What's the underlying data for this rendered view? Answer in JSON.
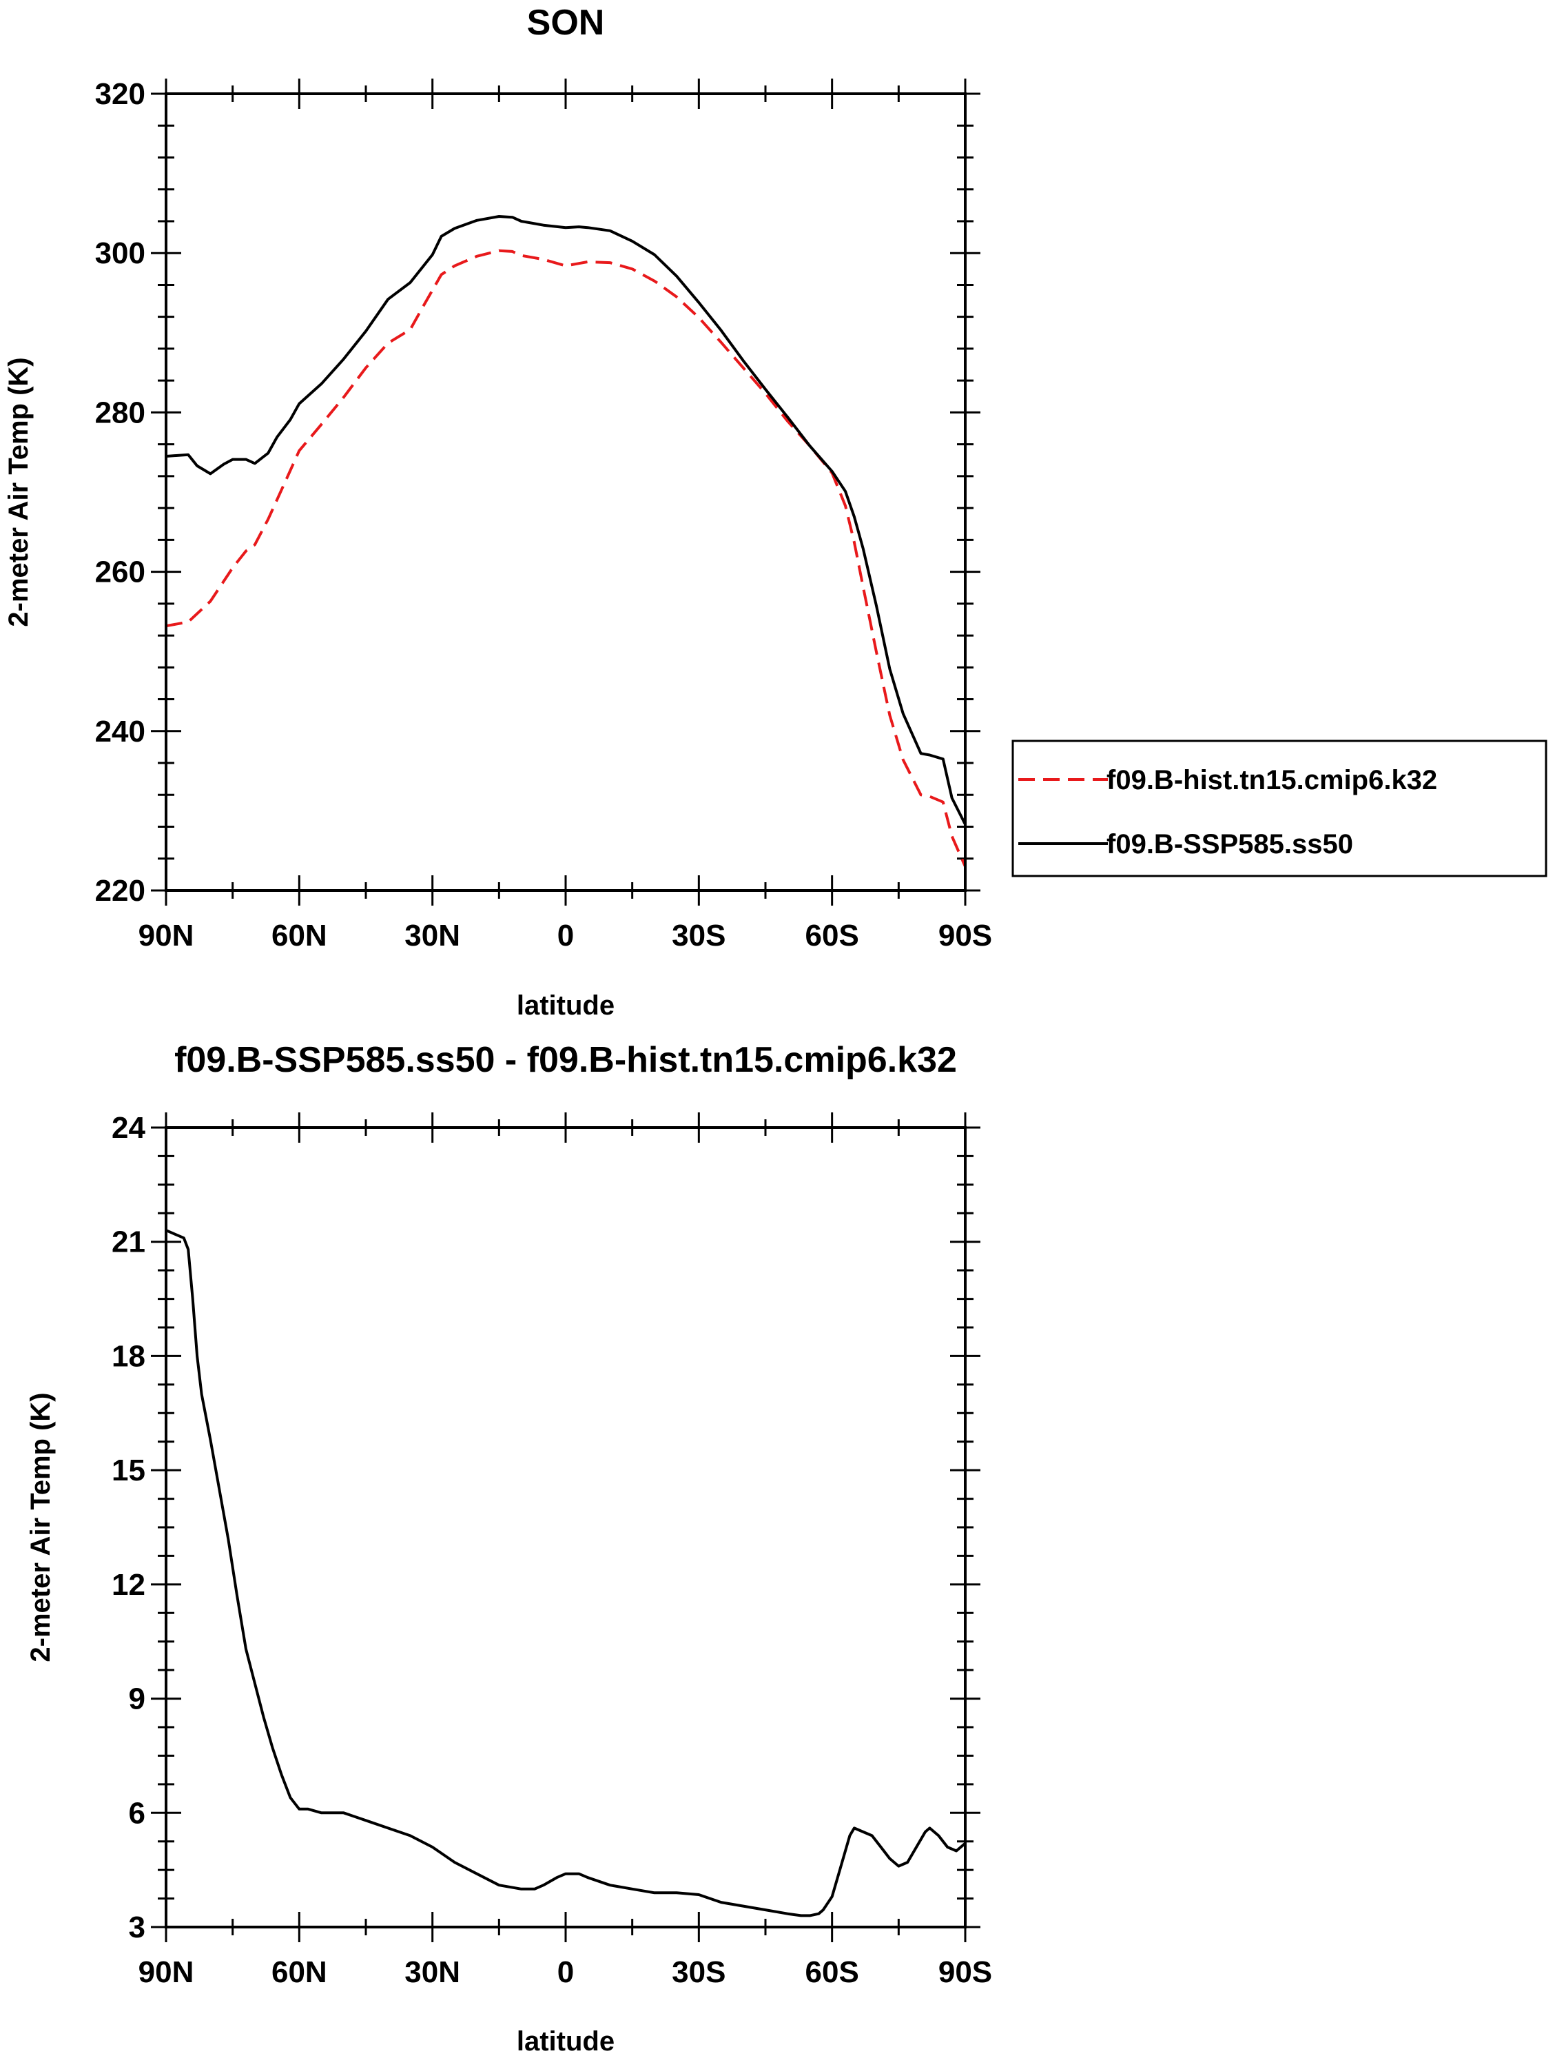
{
  "chart_data": [
    {
      "type": "line",
      "title": "SON",
      "xlabel": "latitude",
      "ylabel": "2-meter Air Temp (K)",
      "xlim": [
        90,
        -90
      ],
      "ylim": [
        220,
        320
      ],
      "x_ticks": [
        90,
        60,
        30,
        0,
        -30,
        -60,
        -90
      ],
      "x_tick_labels": [
        "90N",
        "60N",
        "30N",
        "0",
        "30S",
        "60S",
        "90S"
      ],
      "y_ticks": [
        220,
        240,
        260,
        280,
        300,
        320
      ],
      "y_tick_labels": [
        "220",
        "240",
        "260",
        "280",
        "300",
        "320"
      ],
      "legend_position": "right",
      "series": [
        {
          "name": "f09.B-hist.tn15.cmip6.k32",
          "color": "#e8191b",
          "dash": "dashed",
          "x": [
            90,
            85,
            80,
            75,
            72,
            70,
            67,
            63,
            60,
            55,
            50,
            45,
            40,
            35,
            32,
            28,
            25,
            20,
            15,
            12,
            10,
            5,
            0,
            -3,
            -5,
            -10,
            -15,
            -20,
            -25,
            -30,
            -35,
            -40,
            -45,
            -50,
            -55,
            -60,
            -63,
            -65,
            -67,
            -70,
            -73,
            -76,
            -80,
            -82,
            -85,
            -87,
            -90
          ],
          "values": [
            253.2,
            253.7,
            256.3,
            260.5,
            262.6,
            263.4,
            266.6,
            271.5,
            275.2,
            278.5,
            281.9,
            285.6,
            288.7,
            290.4,
            293.4,
            297.3,
            298.4,
            299.6,
            300.3,
            300.2,
            299.7,
            299.2,
            298.4,
            298.7,
            298.9,
            298.8,
            298.0,
            296.5,
            294.5,
            291.9,
            288.8,
            285.6,
            282.4,
            278.9,
            275.8,
            272.4,
            268.3,
            263.7,
            258.1,
            249.9,
            242.0,
            236.4,
            232.0,
            231.8,
            231.1,
            226.8,
            223.0
          ]
        },
        {
          "name": "f09.B-SSP585.ss50",
          "color": "#000000",
          "dash": "solid",
          "x": [
            90,
            85,
            83,
            80,
            77,
            75,
            72,
            70,
            67,
            65,
            62,
            60,
            55,
            50,
            45,
            40,
            35,
            30,
            28,
            25,
            20,
            15,
            12,
            10,
            5,
            0,
            -3,
            -5,
            -10,
            -15,
            -20,
            -25,
            -30,
            -35,
            -40,
            -45,
            -50,
            -55,
            -60,
            -63,
            -65,
            -67,
            -70,
            -73,
            -76,
            -80,
            -82,
            -85,
            -87,
            -90
          ],
          "values": [
            274.5,
            274.7,
            273.3,
            272.3,
            273.5,
            274.1,
            274.1,
            273.6,
            274.9,
            276.9,
            279.1,
            281.1,
            283.6,
            286.7,
            290.2,
            294.2,
            296.3,
            299.8,
            302.1,
            303.1,
            304.1,
            304.6,
            304.5,
            304.0,
            303.5,
            303.2,
            303.3,
            303.2,
            302.8,
            301.5,
            299.8,
            297.1,
            293.8,
            290.3,
            286.5,
            282.9,
            279.4,
            275.8,
            272.6,
            270.1,
            266.9,
            262.9,
            255.7,
            247.8,
            242.2,
            237.2,
            237.0,
            236.5,
            231.6,
            228.3
          ]
        }
      ]
    },
    {
      "type": "line",
      "title": "f09.B-SSP585.ss50 - f09.B-hist.tn15.cmip6.k32",
      "xlabel": "latitude",
      "ylabel": "2-meter Air Temp (K)",
      "xlim": [
        90,
        -90
      ],
      "ylim": [
        3,
        24
      ],
      "x_ticks": [
        90,
        60,
        30,
        0,
        -30,
        -60,
        -90
      ],
      "x_tick_labels": [
        "90N",
        "60N",
        "30N",
        "0",
        "30S",
        "60S",
        "90S"
      ],
      "y_ticks": [
        3,
        6,
        9,
        12,
        15,
        18,
        21,
        24
      ],
      "y_tick_labels": [
        "3",
        "6",
        "9",
        "12",
        "15",
        "18",
        "21",
        "24"
      ],
      "series": [
        {
          "color": "#000000",
          "dash": "solid",
          "x": [
            90,
            88,
            86,
            85,
            84,
            83,
            82,
            80,
            78,
            76,
            74,
            72,
            70,
            68,
            66,
            64,
            62,
            60,
            58,
            55,
            50,
            45,
            40,
            35,
            30,
            25,
            20,
            15,
            10,
            7,
            5,
            2,
            0,
            -3,
            -5,
            -10,
            -15,
            -20,
            -25,
            -30,
            -35,
            -40,
            -45,
            -50,
            -53,
            -55,
            -57,
            -58,
            -60,
            -62,
            -64,
            -65,
            -67,
            -69,
            -71,
            -73,
            -75,
            -77,
            -79,
            -81,
            -82,
            -84,
            -86,
            -88,
            -90
          ],
          "values": [
            21.3,
            21.2,
            21.1,
            20.8,
            19.5,
            18.0,
            17.0,
            15.8,
            14.5,
            13.2,
            11.7,
            10.3,
            9.4,
            8.5,
            7.7,
            7.0,
            6.4,
            6.1,
            6.1,
            6.0,
            6.0,
            5.8,
            5.6,
            5.4,
            5.1,
            4.7,
            4.4,
            4.1,
            4.0,
            4.0,
            4.1,
            4.3,
            4.4,
            4.4,
            4.3,
            4.1,
            4.0,
            3.9,
            3.9,
            3.85,
            3.65,
            3.55,
            3.45,
            3.35,
            3.3,
            3.3,
            3.35,
            3.45,
            3.8,
            4.6,
            5.4,
            5.6,
            5.5,
            5.4,
            5.1,
            4.8,
            4.6,
            4.7,
            5.1,
            5.5,
            5.6,
            5.4,
            5.1,
            5.0,
            5.2
          ]
        }
      ]
    }
  ]
}
